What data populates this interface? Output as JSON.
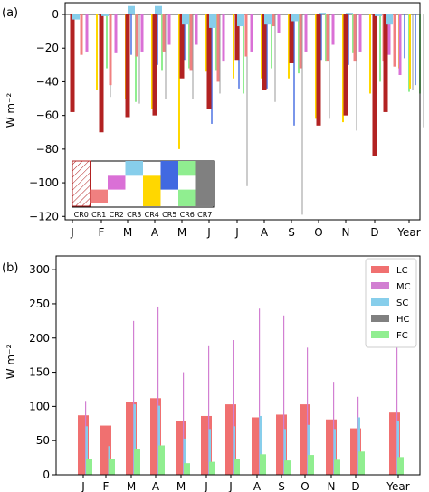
{
  "chart_data": [
    {
      "type": "bar",
      "panel_label": "(a)",
      "ylabel": "W m⁻²",
      "categories": [
        "J",
        "F",
        "M",
        "A",
        "M",
        "J",
        "J",
        "A",
        "S",
        "O",
        "N",
        "D",
        "Year"
      ],
      "ylim": [
        -122,
        7
      ],
      "yticks": [
        0,
        -20,
        -40,
        -60,
        -80,
        -100,
        -120
      ],
      "series": [
        {
          "name": "CR0",
          "color": "#b22222",
          "values": [
            -58,
            -70,
            -61,
            -60,
            -38,
            -56,
            -27,
            -45,
            -29,
            -66,
            -60,
            -84,
            -58
          ]
        },
        {
          "name": "CR1",
          "color": "#f08080",
          "values": [
            -24,
            -42,
            -25,
            -22,
            -33,
            -40,
            -25,
            -7,
            -32,
            -28,
            -28,
            -28,
            -31
          ]
        },
        {
          "name": "CR2",
          "color": "#da70d6",
          "values": [
            -22,
            -23,
            -22,
            -18,
            -18,
            -28,
            -22,
            -11,
            -22,
            -18,
            -22,
            -24,
            -36
          ]
        },
        {
          "name": "CR3",
          "color": "#87ceeb",
          "values": [
            -3,
            -1,
            5,
            5,
            -6,
            -8,
            -7,
            -6,
            -4,
            1,
            1,
            -1,
            -6
          ]
        },
        {
          "name": "CR4",
          "color": "#ffd700",
          "values": [
            -45,
            -50,
            -56,
            -80,
            -34,
            -38,
            -38,
            -38,
            -62,
            -64,
            -47,
            -32,
            -44
          ]
        },
        {
          "name": "CR5",
          "color": "#4169e1",
          "values": [
            -23,
            -24,
            -30,
            -27,
            -65,
            -44,
            -44,
            -66,
            -27,
            -30,
            -23,
            -26,
            -42
          ]
        },
        {
          "name": "CR6",
          "color": "#90ee90",
          "values": [
            -32,
            -52,
            -33,
            -32,
            -33,
            -47,
            -32,
            -35,
            -28,
            -23,
            -40,
            -46,
            -47
          ]
        },
        {
          "name": "CR7",
          "color": "#808080",
          "values": [
            -49,
            -53,
            -50,
            -50,
            -47,
            -102,
            -52,
            -119,
            -62,
            -69,
            -53,
            -45,
            -67
          ]
        }
      ],
      "legend": {
        "placement": "bottom-left",
        "labels": [
          "CR0",
          "CR1",
          "CR2",
          "CR3",
          "CR4",
          "CR5",
          "CR6",
          "CR7"
        ]
      }
    },
    {
      "type": "bar",
      "panel_label": "(b)",
      "ylabel": "W m⁻²",
      "categories": [
        "J",
        "F",
        "M",
        "A",
        "M",
        "J",
        "J",
        "A",
        "S",
        "O",
        "N",
        "D",
        "Year"
      ],
      "ylim": [
        0,
        320
      ],
      "yticks": [
        0,
        50,
        100,
        150,
        200,
        250,
        300
      ],
      "series": [
        {
          "name": "LC",
          "color": "#f07070",
          "values": [
            87,
            72,
            107,
            112,
            79,
            86,
            103,
            84,
            88,
            103,
            81,
            68,
            91
          ]
        },
        {
          "name": "MC",
          "color": "#d27fd2",
          "values": [
            108,
            0,
            225,
            246,
            150,
            188,
            197,
            243,
            233,
            186,
            136,
            114,
            280
          ]
        },
        {
          "name": "SC",
          "color": "#87ceeb",
          "values": [
            71,
            42,
            103,
            101,
            53,
            67,
            71,
            86,
            67,
            73,
            67,
            84,
            78
          ]
        },
        {
          "name": "HC",
          "color": "#808080",
          "values": [
            0,
            0,
            0,
            0,
            0,
            0,
            0,
            0,
            0,
            0,
            0,
            0,
            0
          ]
        },
        {
          "name": "FC",
          "color": "#90ee90",
          "values": [
            23,
            23,
            37,
            43,
            17,
            19,
            23,
            30,
            21,
            29,
            22,
            34,
            26
          ]
        }
      ],
      "legend": {
        "placement": "top-right",
        "labels": [
          "LC",
          "MC",
          "SC",
          "HC",
          "FC"
        ]
      }
    }
  ]
}
